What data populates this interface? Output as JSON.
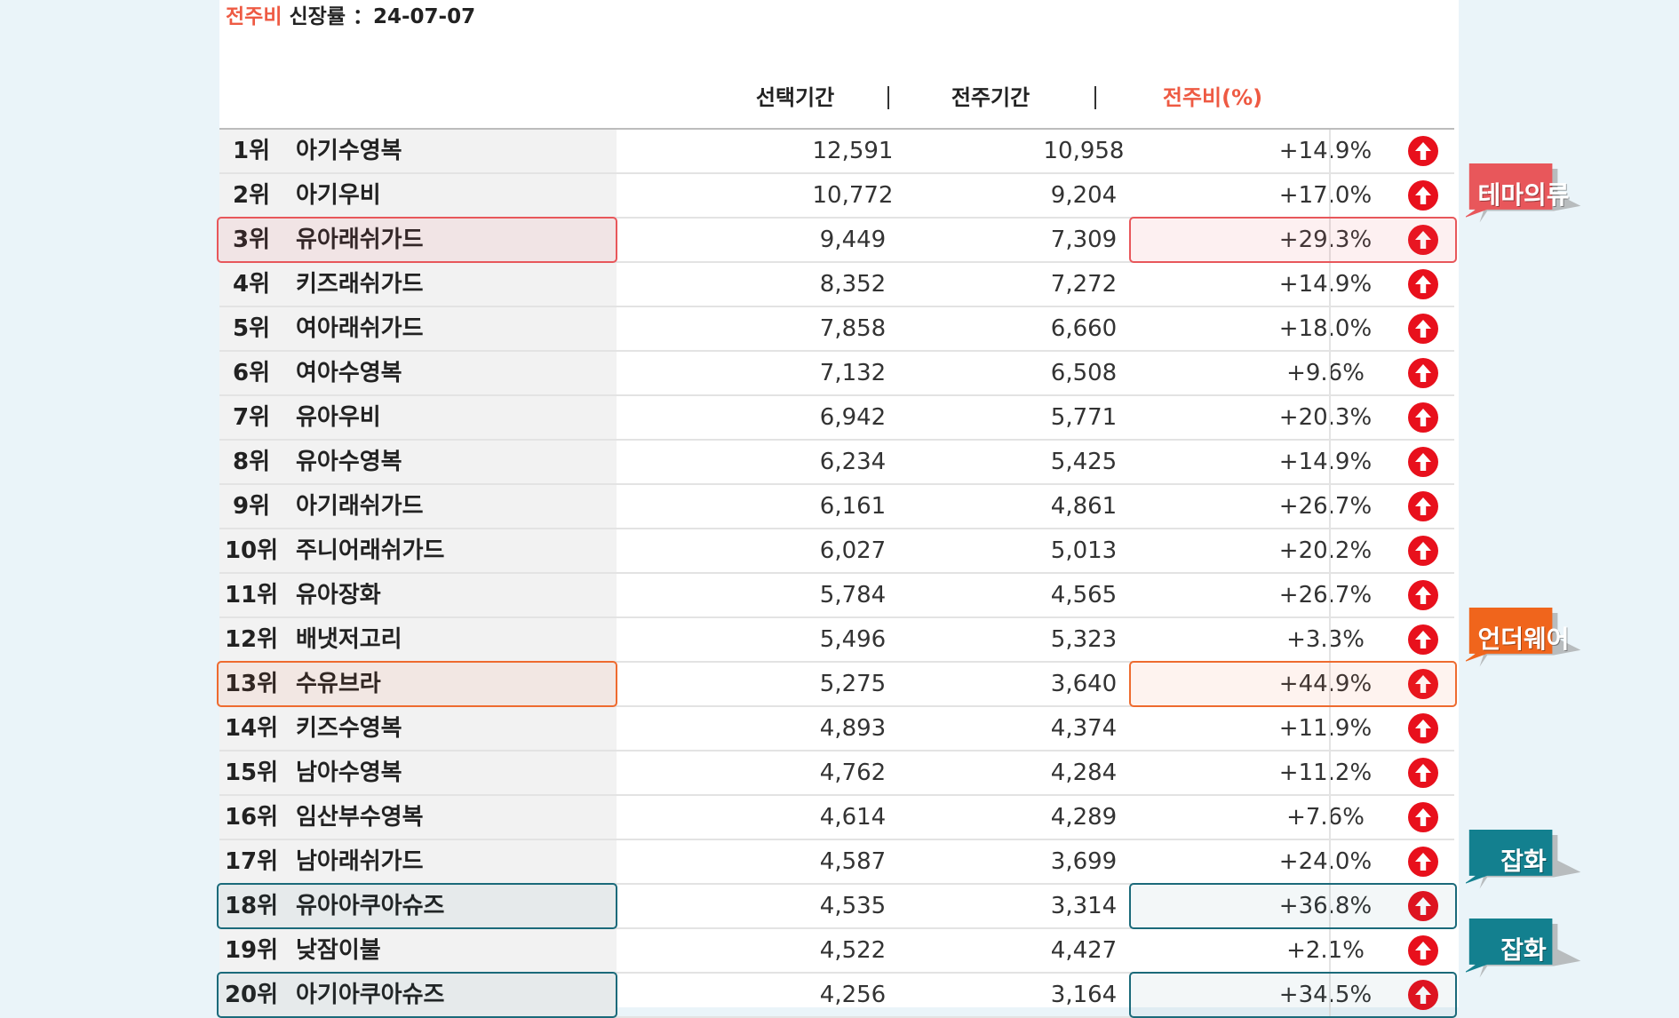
{
  "header": {
    "accent_label": "전주비",
    "label": "신장률",
    "date_prefix": "：",
    "date": "24-07-07"
  },
  "columns": {
    "selected_period": "선택기간",
    "previous_week": "전주기간",
    "week_ratio": "전주비(%)",
    "separator": "|"
  },
  "colors": {
    "accent": "#ee5a43",
    "up_arrow": "#e8101c",
    "badge_red": "#e8575b",
    "badge_orange": "#f0651c",
    "badge_teal": "#13808f"
  },
  "rows": [
    {
      "rank": "1위",
      "name": "아기수영복",
      "selected": "12,591",
      "previous": "10,958",
      "ratio": "+14.9%",
      "trend": "up-arrow-icon"
    },
    {
      "rank": "2위",
      "name": "아기우비",
      "selected": "10,772",
      "previous": "9,204",
      "ratio": "+17.0%",
      "trend": "up-arrow-icon"
    },
    {
      "rank": "3위",
      "name": "유아래쉬가드",
      "selected": "9,449",
      "previous": "7,309",
      "ratio": "+29.3%",
      "trend": "up-arrow-icon",
      "highlight": "red"
    },
    {
      "rank": "4위",
      "name": "키즈래쉬가드",
      "selected": "8,352",
      "previous": "7,272",
      "ratio": "+14.9%",
      "trend": "up-arrow-icon"
    },
    {
      "rank": "5위",
      "name": "여아래쉬가드",
      "selected": "7,858",
      "previous": "6,660",
      "ratio": "+18.0%",
      "trend": "up-arrow-icon"
    },
    {
      "rank": "6위",
      "name": "여아수영복",
      "selected": "7,132",
      "previous": "6,508",
      "ratio": "+9.6%",
      "trend": "up-arrow-icon"
    },
    {
      "rank": "7위",
      "name": "유아우비",
      "selected": "6,942",
      "previous": "5,771",
      "ratio": "+20.3%",
      "trend": "up-arrow-icon"
    },
    {
      "rank": "8위",
      "name": "유아수영복",
      "selected": "6,234",
      "previous": "5,425",
      "ratio": "+14.9%",
      "trend": "up-arrow-icon"
    },
    {
      "rank": "9위",
      "name": "아기래쉬가드",
      "selected": "6,161",
      "previous": "4,861",
      "ratio": "+26.7%",
      "trend": "up-arrow-icon"
    },
    {
      "rank": "10위",
      "name": "주니어래쉬가드",
      "selected": "6,027",
      "previous": "5,013",
      "ratio": "+20.2%",
      "trend": "up-arrow-icon"
    },
    {
      "rank": "11위",
      "name": "유아장화",
      "selected": "5,784",
      "previous": "4,565",
      "ratio": "+26.7%",
      "trend": "up-arrow-icon"
    },
    {
      "rank": "12위",
      "name": "배냇저고리",
      "selected": "5,496",
      "previous": "5,323",
      "ratio": "+3.3%",
      "trend": "up-arrow-icon"
    },
    {
      "rank": "13위",
      "name": "수유브라",
      "selected": "5,275",
      "previous": "3,640",
      "ratio": "+44.9%",
      "trend": "up-arrow-icon",
      "highlight": "orange"
    },
    {
      "rank": "14위",
      "name": "키즈수영복",
      "selected": "4,893",
      "previous": "4,374",
      "ratio": "+11.9%",
      "trend": "up-arrow-icon"
    },
    {
      "rank": "15위",
      "name": "남아수영복",
      "selected": "4,762",
      "previous": "4,284",
      "ratio": "+11.2%",
      "trend": "up-arrow-icon"
    },
    {
      "rank": "16위",
      "name": "임산부수영복",
      "selected": "4,614",
      "previous": "4,289",
      "ratio": "+7.6%",
      "trend": "up-arrow-icon"
    },
    {
      "rank": "17위",
      "name": "남아래쉬가드",
      "selected": "4,587",
      "previous": "3,699",
      "ratio": "+24.0%",
      "trend": "up-arrow-icon"
    },
    {
      "rank": "18위",
      "name": "유아아쿠아슈즈",
      "selected": "4,535",
      "previous": "3,314",
      "ratio": "+36.8%",
      "trend": "up-arrow-icon",
      "highlight": "teal"
    },
    {
      "rank": "19위",
      "name": "낮잠이불",
      "selected": "4,522",
      "previous": "4,427",
      "ratio": "+2.1%",
      "trend": "up-arrow-icon"
    },
    {
      "rank": "20위",
      "name": "아기아쿠아슈즈",
      "selected": "4,256",
      "previous": "3,164",
      "ratio": "+34.5%",
      "trend": "up-arrow-icon",
      "highlight": "teal"
    }
  ],
  "badges": [
    {
      "label": "테마의류",
      "color": "red",
      "row": 3
    },
    {
      "label": "언더웨어",
      "color": "orange",
      "row": 13
    },
    {
      "label": "잡화",
      "color": "teal",
      "row": 18
    },
    {
      "label": "잡화",
      "color": "teal",
      "row": 20
    }
  ]
}
